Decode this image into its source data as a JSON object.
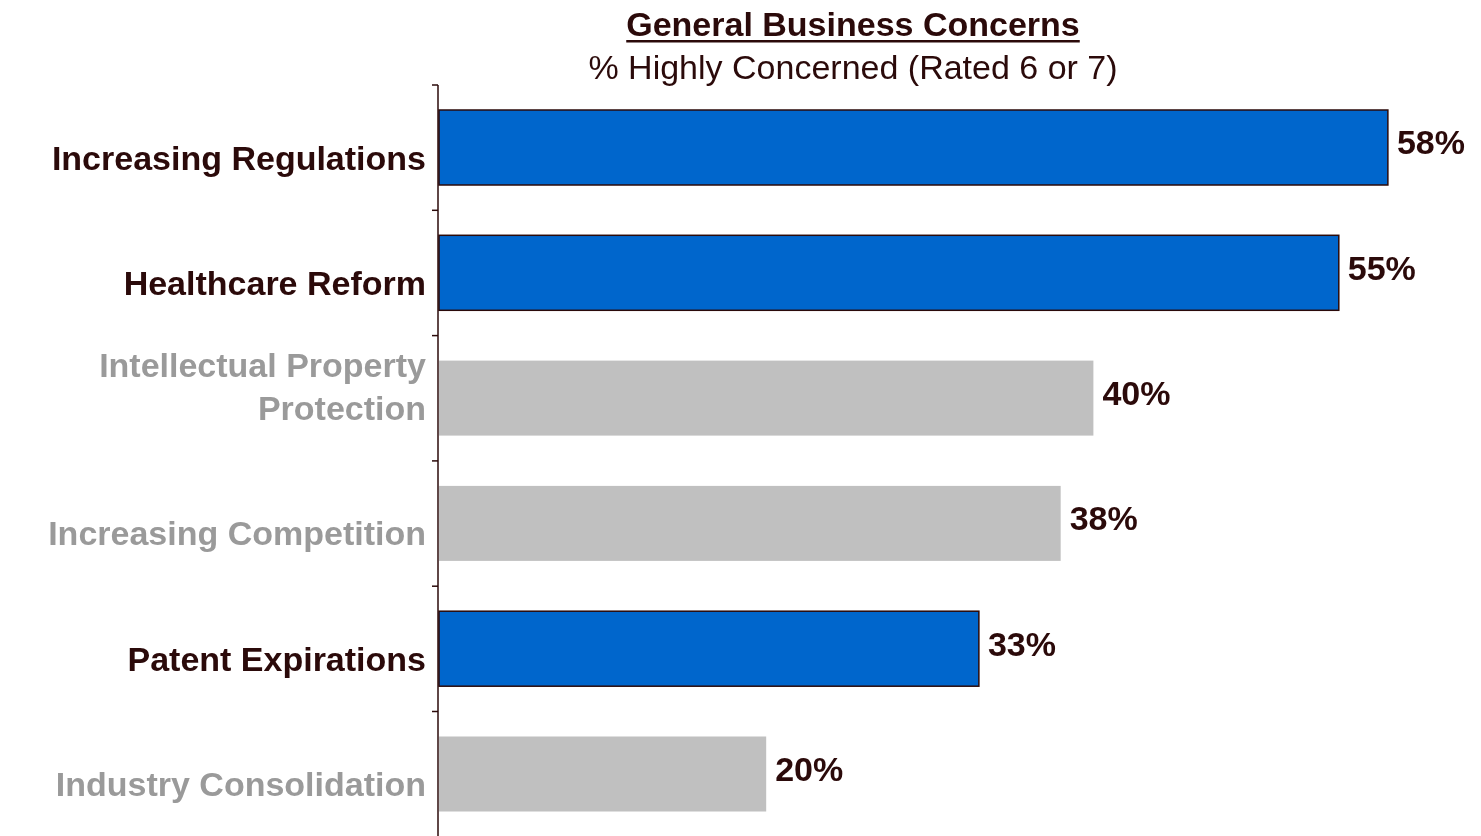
{
  "chart_data": {
    "type": "bar",
    "orientation": "horizontal",
    "relative": false,
    "title": "General Business Concerns",
    "subtitle": "% Highly Concerned (Rated 6 or 7)",
    "categories": [
      "Increasing Regulations",
      "Healthcare Reform",
      "Intellectual Property Protection",
      "Increasing Competition",
      "Patent Expirations",
      "Industry Consolidation"
    ],
    "values": [
      58,
      55,
      40,
      38,
      33,
      20
    ],
    "colors": [
      "#0066cc",
      "#0066cc",
      "#c0c0c0",
      "#c0c0c0",
      "#0066cc",
      "#c0c0c0"
    ],
    "value_labels": [
      "58%",
      "55%",
      "40%",
      "38%",
      "33%",
      "20%"
    ],
    "data_labels": false
  }
}
